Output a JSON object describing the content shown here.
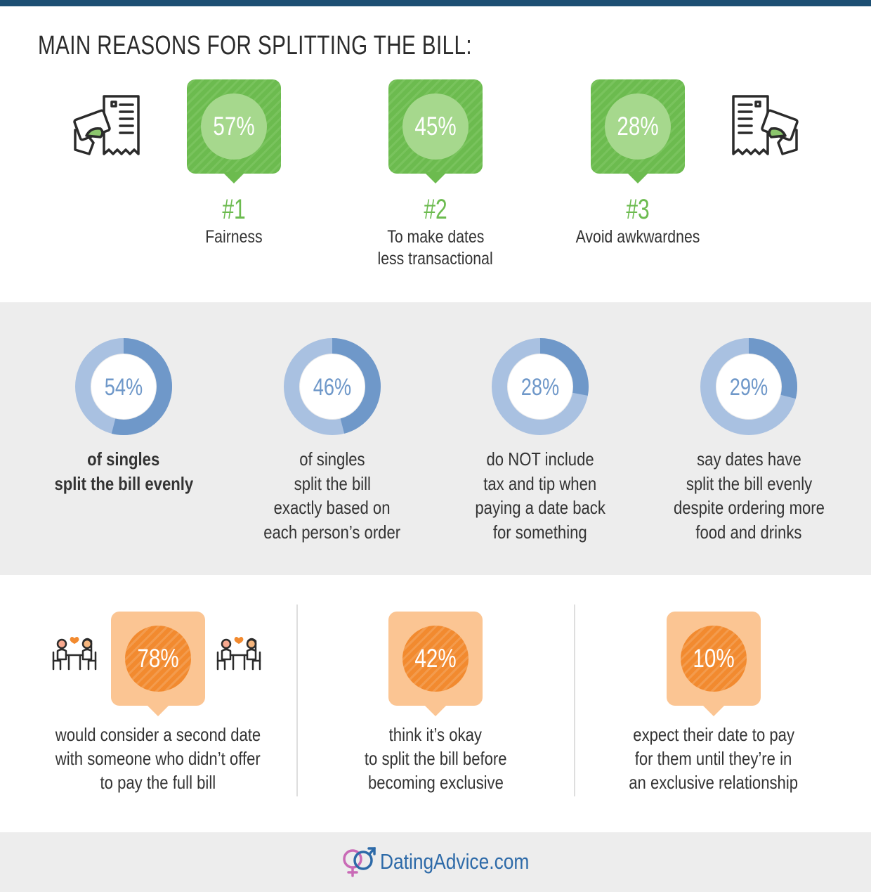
{
  "title": "MAIN REASONS FOR SPLITTING THE BILL:",
  "colors": {
    "green": "#6cbb4f",
    "blue": "#6f98c9",
    "light_blue": "#a9c1e1",
    "orange": "#f28a2f",
    "peach": "#fbc593",
    "navy": "#1d4f73"
  },
  "icons": [
    "bill-card-icon",
    "dining-couple-icon",
    "dating-logo-icon"
  ],
  "reasons": [
    {
      "value": "57%",
      "rank": "#1",
      "label_lines": [
        "Fairness"
      ]
    },
    {
      "value": "45%",
      "rank": "#2",
      "label_lines": [
        "To make dates",
        "less transactional"
      ]
    },
    {
      "value": "28%",
      "rank": "#3",
      "label_lines": [
        "Avoid awkwardnes"
      ]
    }
  ],
  "donuts": [
    {
      "value": "54%",
      "lines": [
        "of singles",
        "split the bill evenly"
      ]
    },
    {
      "value": "46%",
      "lines": [
        "of singles",
        "split the bill",
        "exactly based on",
        "each person’s order"
      ]
    },
    {
      "value": "28%",
      "lines": [
        "do NOT include",
        "tax and tip when",
        "paying a date back",
        "for something"
      ]
    },
    {
      "value": "29%",
      "lines": [
        "say dates have",
        "split the bill evenly",
        "despite ordering more",
        "food and drinks"
      ]
    }
  ],
  "stats": [
    {
      "value": "78%",
      "lines": [
        "would consider a second date",
        "with someone who didn’t offer",
        "to pay the full bill"
      ]
    },
    {
      "value": "42%",
      "lines": [
        "think it’s okay",
        "to split the bill before",
        "becoming exclusive"
      ]
    },
    {
      "value": "10%",
      "lines": [
        "expect their date to pay",
        "for them until they’re in",
        "an exclusive relationship"
      ]
    }
  ],
  "footer": {
    "logo_main": "DatingAdvice",
    "logo_suffix": ".com"
  },
  "chart_data": {
    "type": "bar",
    "charts": [
      {
        "title": "MAIN REASONS FOR SPLITTING THE BILL:",
        "categories": [
          "Fairness",
          "To make dates less transactional",
          "Avoid awkwardnes"
        ],
        "values": [
          57,
          45,
          28
        ]
      },
      {
        "type": "pie",
        "categories": [
          "of singles split the bill evenly",
          "of singles split the bill exactly based on each person’s order",
          "do NOT include tax and tip when paying a date back for something",
          "say dates have split the bill evenly despite ordering more food and drinks"
        ],
        "values": [
          54,
          46,
          28,
          29
        ]
      },
      {
        "categories": [
          "would consider a second date with someone who didn’t offer to pay the full bill",
          "think it’s okay to split the bill before becoming exclusive",
          "expect their date to pay for them until they’re in an exclusive relationship"
        ],
        "values": [
          78,
          42,
          10
        ]
      }
    ]
  }
}
